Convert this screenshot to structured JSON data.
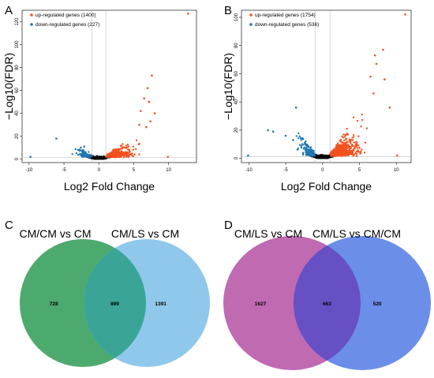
{
  "chart_data": [
    {
      "panel": "A",
      "type": "scatter",
      "xlabel": "Log2 Fold Change",
      "ylabel": "−Log10(FDR)",
      "xlim": [
        -11,
        14
      ],
      "ylim": [
        -3,
        130
      ],
      "x_ticks": [
        -10,
        -5,
        0,
        5,
        10
      ],
      "y_ticks": [
        0,
        20,
        40,
        60,
        80,
        100,
        120
      ],
      "thresholds": {
        "x": [
          -1,
          1
        ],
        "y": 1.3
      },
      "legend_position": "top-left",
      "series": [
        {
          "name": "up-regulated genes (1400)",
          "color": "#f4511e",
          "count": 1400
        },
        {
          "name": "down-regulated genes (227)",
          "color": "#1f77b4",
          "count": 227
        }
      ],
      "outliers": {
        "up": [
          [
            12.8,
            127
          ],
          [
            7.6,
            73
          ],
          [
            7.0,
            62
          ],
          [
            6.5,
            53
          ],
          [
            7.2,
            50
          ],
          [
            8.0,
            40
          ],
          [
            6.0,
            42
          ],
          [
            7.4,
            33
          ],
          [
            6.8,
            28
          ],
          [
            5.8,
            30
          ],
          [
            9.9,
            2
          ]
        ],
        "down": [
          [
            -9.8,
            2
          ],
          [
            -6.1,
            18
          ],
          [
            -2.6,
            10
          ],
          [
            -2.1,
            11
          ]
        ]
      }
    },
    {
      "panel": "B",
      "type": "scatter",
      "xlabel": "Log2 Fold Change",
      "ylabel": "−Log10(FDR)",
      "xlim": [
        -11,
        12
      ],
      "ylim": [
        -3,
        105
      ],
      "x_ticks": [
        -10,
        -5,
        0,
        5,
        10
      ],
      "y_ticks": [
        0,
        20,
        40,
        60,
        80,
        100
      ],
      "thresholds": {
        "x": [
          -1,
          1
        ],
        "y": 1.3
      },
      "legend_position": "top-left",
      "series": [
        {
          "name": "up-regulated genes (1754)",
          "color": "#f4511e",
          "count": 1754
        },
        {
          "name": "down-regulated genes (536)",
          "color": "#1f77b4",
          "count": 536
        }
      ],
      "outliers": {
        "up": [
          [
            11.2,
            102
          ],
          [
            8.2,
            77
          ],
          [
            7.1,
            73
          ],
          [
            7.3,
            67
          ],
          [
            8.4,
            56
          ],
          [
            9.1,
            36
          ],
          [
            6.5,
            58
          ],
          [
            6.9,
            46
          ],
          [
            10.1,
            2
          ]
        ],
        "down": [
          [
            -10.1,
            2
          ],
          [
            -3.6,
            36
          ],
          [
            -6.7,
            19
          ],
          [
            -7.4,
            20
          ],
          [
            -5.0,
            16
          ],
          [
            -2.8,
            14
          ],
          [
            -4.0,
            13
          ]
        ]
      }
    },
    {
      "panel": "C",
      "type": "venn",
      "sets": [
        {
          "label": "CM/CM vs CM",
          "color": "#4daa6e"
        },
        {
          "label": "CM/LS vs CM",
          "color": "#90c8ec"
        }
      ],
      "overlap_color": "#3aa597",
      "counts": {
        "left_only": "728",
        "both": "899",
        "right_only": "1391"
      }
    },
    {
      "panel": "D",
      "type": "venn",
      "sets": [
        {
          "label": "CM/LS vs CM",
          "color": "#c06ab2"
        },
        {
          "label": "CM/LS vs CM/CM",
          "color": "#6b8ee8"
        }
      ],
      "overlap_color": "#6650c4",
      "counts": {
        "left_only": "1627",
        "both": "663",
        "right_only": "520"
      }
    }
  ]
}
